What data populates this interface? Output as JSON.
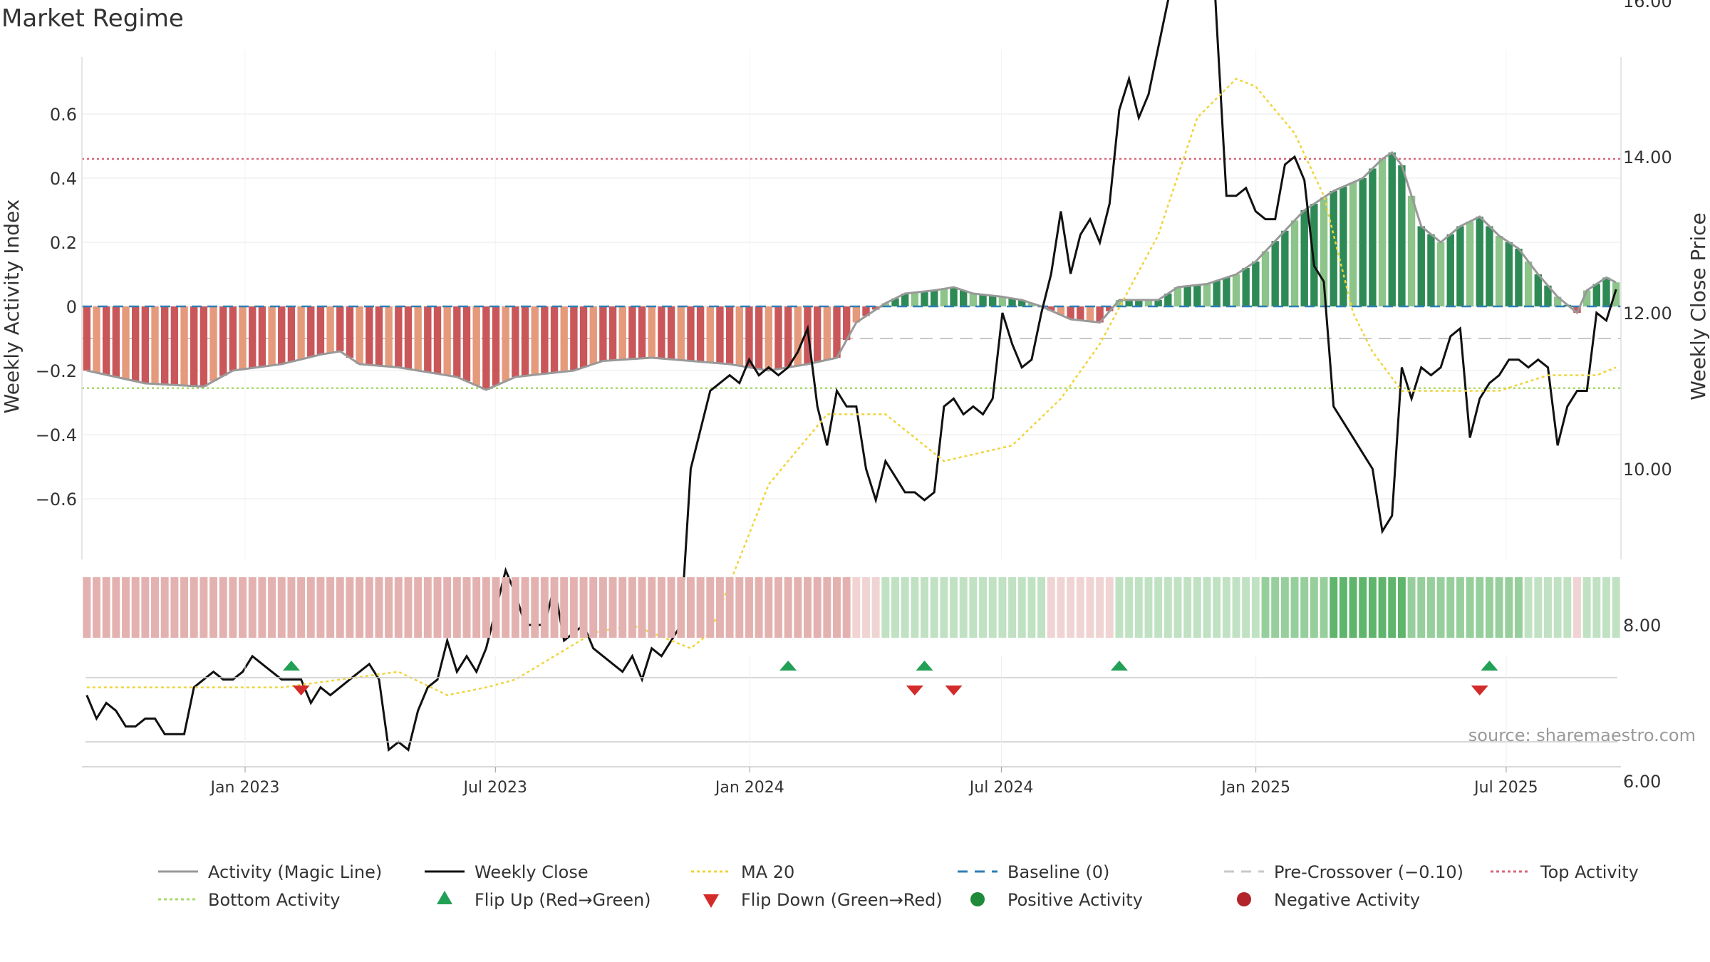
{
  "chart_data": {
    "type": "bar",
    "title": "Market Regime",
    "ylabel": "Weekly Activity Index",
    "y2label": "Weekly Close Price",
    "ylim": [
      -0.78,
      0.78
    ],
    "y2lim": [
      5.4,
      19.0
    ],
    "x_start": "2022-09-05",
    "x_end": "2025-09-22",
    "xticks": [
      {
        "date": "2023-01-01",
        "label": "Jan 2023"
      },
      {
        "date": "2023-07-01",
        "label": "Jul 2023"
      },
      {
        "date": "2024-01-01",
        "label": "Jan 2024"
      },
      {
        "date": "2024-07-01",
        "label": "Jul 2024"
      },
      {
        "date": "2025-01-01",
        "label": "Jan 2025"
      },
      {
        "date": "2025-07-01",
        "label": "Jul 2025"
      }
    ],
    "yticks": [
      {
        "value": 0.6,
        "label": "0.6"
      },
      {
        "value": 0.4,
        "label": "0.4"
      },
      {
        "value": 0.2,
        "label": "0.2"
      },
      {
        "value": 0,
        "label": "0"
      },
      {
        "value": -0.2,
        "label": "−0.2"
      },
      {
        "value": -0.4,
        "label": "−0.4"
      },
      {
        "value": -0.6,
        "label": "−0.6"
      }
    ],
    "y2ticks": [
      {
        "value": 18,
        "label": "18.00"
      },
      {
        "value": 16,
        "label": "16.00"
      },
      {
        "value": 14,
        "label": "14.00"
      },
      {
        "value": 12,
        "label": "12.00"
      },
      {
        "value": 10,
        "label": "10.00"
      },
      {
        "value": 8,
        "label": "8.00"
      },
      {
        "value": 6,
        "label": "6.00"
      }
    ],
    "reference_lines": {
      "top": 0.46,
      "bottom": -0.255,
      "pre_crossover": -0.1,
      "baseline": 0
    },
    "activity_knots": [
      [
        0,
        -0.2
      ],
      [
        6,
        -0.24
      ],
      [
        12,
        -0.25
      ],
      [
        15,
        -0.2
      ],
      [
        20,
        -0.18
      ],
      [
        24,
        -0.15
      ],
      [
        26,
        -0.14
      ],
      [
        28,
        -0.18
      ],
      [
        32,
        -0.19
      ],
      [
        38,
        -0.22
      ],
      [
        41,
        -0.26
      ],
      [
        44,
        -0.22
      ],
      [
        50,
        -0.2
      ],
      [
        53,
        -0.17
      ],
      [
        58,
        -0.16
      ],
      [
        62,
        -0.17
      ],
      [
        66,
        -0.18
      ],
      [
        70,
        -0.2
      ],
      [
        74,
        -0.18
      ],
      [
        77,
        -0.16
      ],
      [
        79,
        -0.05
      ],
      [
        82,
        0.01
      ],
      [
        84,
        0.04
      ],
      [
        87,
        0.05
      ],
      [
        89,
        0.06
      ],
      [
        91,
        0.04
      ],
      [
        94,
        0.03
      ],
      [
        96,
        0.02
      ],
      [
        98,
        0.0
      ],
      [
        101,
        -0.04
      ],
      [
        104,
        -0.05
      ],
      [
        106,
        0.02
      ],
      [
        110,
        0.02
      ],
      [
        112,
        0.06
      ],
      [
        115,
        0.07
      ],
      [
        118,
        0.1
      ],
      [
        120,
        0.14
      ],
      [
        125,
        0.3
      ],
      [
        128,
        0.36
      ],
      [
        131,
        0.4
      ],
      [
        133,
        0.46
      ],
      [
        134,
        0.48
      ],
      [
        135,
        0.44
      ],
      [
        137,
        0.25
      ],
      [
        139,
        0.2
      ],
      [
        141,
        0.25
      ],
      [
        143,
        0.28
      ],
      [
        145,
        0.22
      ],
      [
        147,
        0.18
      ],
      [
        149,
        0.1
      ],
      [
        151,
        0.03
      ],
      [
        153,
        -0.02
      ],
      [
        154,
        0.05
      ],
      [
        156,
        0.09
      ],
      [
        158,
        0.06
      ],
      [
        160,
        0.08
      ],
      [
        163,
        0.1
      ],
      [
        166,
        0.09
      ],
      [
        168,
        0.07
      ],
      [
        170,
        0.11
      ],
      [
        172,
        0.13
      ],
      [
        174,
        0.18
      ],
      [
        176,
        0.22
      ]
    ],
    "close_knots": [
      [
        0,
        7.1
      ],
      [
        1,
        6.8
      ],
      [
        2,
        7.0
      ],
      [
        3,
        6.9
      ],
      [
        4,
        6.7
      ],
      [
        5,
        6.7
      ],
      [
        6,
        6.8
      ],
      [
        7,
        6.8
      ],
      [
        8,
        6.6
      ],
      [
        9,
        6.6
      ],
      [
        10,
        6.6
      ],
      [
        11,
        7.2
      ],
      [
        12,
        7.3
      ],
      [
        13,
        7.4
      ],
      [
        14,
        7.3
      ],
      [
        15,
        7.3
      ],
      [
        16,
        7.4
      ],
      [
        17,
        7.6
      ],
      [
        18,
        7.5
      ],
      [
        19,
        7.4
      ],
      [
        20,
        7.3
      ],
      [
        21,
        7.3
      ],
      [
        22,
        7.3
      ],
      [
        23,
        7.0
      ],
      [
        24,
        7.2
      ],
      [
        25,
        7.1
      ],
      [
        26,
        7.2
      ],
      [
        27,
        7.3
      ],
      [
        28,
        7.4
      ],
      [
        29,
        7.5
      ],
      [
        30,
        7.3
      ],
      [
        31,
        6.4
      ],
      [
        32,
        6.5
      ],
      [
        33,
        6.4
      ],
      [
        34,
        6.9
      ],
      [
        35,
        7.2
      ],
      [
        36,
        7.3
      ],
      [
        37,
        7.8
      ],
      [
        38,
        7.4
      ],
      [
        39,
        7.6
      ],
      [
        40,
        7.4
      ],
      [
        41,
        7.7
      ],
      [
        42,
        8.2
      ],
      [
        43,
        8.7
      ],
      [
        44,
        8.4
      ],
      [
        45,
        8.0
      ],
      [
        46,
        8.0
      ],
      [
        47,
        8.0
      ],
      [
        48,
        8.5
      ],
      [
        49,
        7.8
      ],
      [
        50,
        7.9
      ],
      [
        51,
        8.0
      ],
      [
        52,
        7.7
      ],
      [
        53,
        7.6
      ],
      [
        54,
        7.5
      ],
      [
        55,
        7.4
      ],
      [
        56,
        7.6
      ],
      [
        57,
        7.3
      ],
      [
        58,
        7.7
      ],
      [
        59,
        7.6
      ],
      [
        60,
        7.8
      ],
      [
        61,
        8.0
      ],
      [
        62,
        10.0
      ],
      [
        63,
        10.5
      ],
      [
        64,
        11.0
      ],
      [
        65,
        11.1
      ],
      [
        66,
        11.2
      ],
      [
        67,
        11.1
      ],
      [
        68,
        11.4
      ],
      [
        69,
        11.2
      ],
      [
        70,
        11.3
      ],
      [
        71,
        11.2
      ],
      [
        72,
        11.3
      ],
      [
        73,
        11.5
      ],
      [
        74,
        11.8
      ],
      [
        75,
        10.8
      ],
      [
        76,
        10.3
      ],
      [
        77,
        11.0
      ],
      [
        78,
        10.8
      ],
      [
        79,
        10.8
      ],
      [
        80,
        10.0
      ],
      [
        81,
        9.6
      ],
      [
        82,
        10.1
      ],
      [
        83,
        9.9
      ],
      [
        84,
        9.7
      ],
      [
        85,
        9.7
      ],
      [
        86,
        9.6
      ],
      [
        87,
        9.7
      ],
      [
        88,
        10.8
      ],
      [
        89,
        10.9
      ],
      [
        90,
        10.7
      ],
      [
        91,
        10.8
      ],
      [
        92,
        10.7
      ],
      [
        93,
        10.9
      ],
      [
        94,
        12.0
      ],
      [
        95,
        11.6
      ],
      [
        96,
        11.3
      ],
      [
        97,
        11.4
      ],
      [
        98,
        12.0
      ],
      [
        99,
        12.5
      ],
      [
        100,
        13.3
      ],
      [
        101,
        12.5
      ],
      [
        102,
        13.0
      ],
      [
        103,
        13.2
      ],
      [
        104,
        12.9
      ],
      [
        105,
        13.4
      ],
      [
        106,
        14.6
      ],
      [
        107,
        15.0
      ],
      [
        108,
        14.5
      ],
      [
        109,
        14.8
      ],
      [
        110,
        15.4
      ],
      [
        111,
        16.0
      ],
      [
        112,
        16.4
      ],
      [
        113,
        17.1
      ],
      [
        114,
        17.9
      ],
      [
        115,
        18.0
      ],
      [
        116,
        15.7
      ],
      [
        117,
        13.5
      ],
      [
        118,
        13.5
      ],
      [
        119,
        13.6
      ],
      [
        120,
        13.3
      ],
      [
        121,
        13.2
      ],
      [
        122,
        13.2
      ],
      [
        123,
        13.9
      ],
      [
        124,
        14.0
      ],
      [
        125,
        13.7
      ],
      [
        126,
        12.6
      ],
      [
        127,
        12.4
      ],
      [
        128,
        10.8
      ],
      [
        129,
        10.6
      ],
      [
        130,
        10.4
      ],
      [
        131,
        10.2
      ],
      [
        132,
        10.0
      ],
      [
        133,
        9.2
      ],
      [
        134,
        9.4
      ],
      [
        135,
        11.3
      ],
      [
        136,
        10.9
      ],
      [
        137,
        11.3
      ],
      [
        138,
        11.2
      ],
      [
        139,
        11.3
      ],
      [
        140,
        11.7
      ],
      [
        141,
        11.8
      ],
      [
        142,
        10.4
      ],
      [
        143,
        10.9
      ],
      [
        144,
        11.1
      ],
      [
        145,
        11.2
      ],
      [
        146,
        11.4
      ],
      [
        147,
        11.4
      ],
      [
        148,
        11.3
      ],
      [
        149,
        11.4
      ],
      [
        150,
        11.3
      ],
      [
        151,
        10.3
      ],
      [
        152,
        10.8
      ],
      [
        153,
        11.0
      ],
      [
        154,
        11.0
      ],
      [
        155,
        12.0
      ],
      [
        156,
        11.9
      ],
      [
        157,
        12.3
      ]
    ],
    "ma20_knots": [
      [
        0,
        7.2
      ],
      [
        20,
        7.2
      ],
      [
        26,
        7.3
      ],
      [
        32,
        7.4
      ],
      [
        37,
        7.1
      ],
      [
        41,
        7.2
      ],
      [
        44,
        7.3
      ],
      [
        52,
        7.9
      ],
      [
        56,
        8.0
      ],
      [
        62,
        7.7
      ],
      [
        64,
        7.9
      ],
      [
        70,
        9.8
      ],
      [
        76,
        10.7
      ],
      [
        82,
        10.7
      ],
      [
        88,
        10.1
      ],
      [
        95,
        10.3
      ],
      [
        100,
        10.9
      ],
      [
        104,
        11.6
      ],
      [
        110,
        13.0
      ],
      [
        114,
        14.5
      ],
      [
        118,
        15.0
      ],
      [
        120,
        14.9
      ],
      [
        124,
        14.3
      ],
      [
        127,
        13.5
      ],
      [
        130,
        12.0
      ],
      [
        132,
        11.5
      ],
      [
        135,
        11.0
      ],
      [
        140,
        11.0
      ],
      [
        145,
        11.0
      ],
      [
        150,
        11.2
      ],
      [
        155,
        11.2
      ],
      [
        157,
        11.3
      ]
    ],
    "flip_up": [
      21,
      72,
      86,
      106,
      144
    ],
    "flip_down": [
      22,
      85,
      89,
      143
    ],
    "source": "source: sharemaestro.com",
    "legend_position": "bottom",
    "legend": [
      {
        "label": "Activity (Magic Line)",
        "kind": "line",
        "color": "#999999"
      },
      {
        "label": "Weekly Close",
        "kind": "line",
        "color": "#111111"
      },
      {
        "label": "MA 20",
        "kind": "dotted",
        "color": "#f0d43a"
      },
      {
        "label": "Baseline (0)",
        "kind": "dashed",
        "color": "#2f7fb5"
      },
      {
        "label": "Pre-Crossover (−0.10)",
        "kind": "dashed",
        "color": "#c8c8c8"
      },
      {
        "label": "Top Activity",
        "kind": "dotted",
        "color": "#d9667a"
      },
      {
        "label": "Bottom Activity",
        "kind": "dotted",
        "color": "#a8d96a"
      },
      {
        "label": "Flip Up (Red→Green)",
        "kind": "tri-up",
        "color": "#22a055"
      },
      {
        "label": "Flip Down (Green→Red)",
        "kind": "tri-down",
        "color": "#d32a2a"
      },
      {
        "label": "Positive Activity",
        "kind": "dot",
        "color": "#1f8a3a"
      },
      {
        "label": "Negative Activity",
        "kind": "dot",
        "color": "#b2232a"
      }
    ],
    "colors": {
      "pos_dark": "#2e8a55",
      "pos_light": "#8cc48a",
      "neg_dark": "#c9575a",
      "neg_light": "#e59a7c",
      "strip_neg": "#e3b2b0",
      "strip_neg_light": "#f0d4d3",
      "strip_pos": "#c0e2c3",
      "strip_pos_mid": "#97cf9c",
      "strip_pos_dark": "#5fb56c",
      "grid": "#e8e8e8"
    }
  }
}
